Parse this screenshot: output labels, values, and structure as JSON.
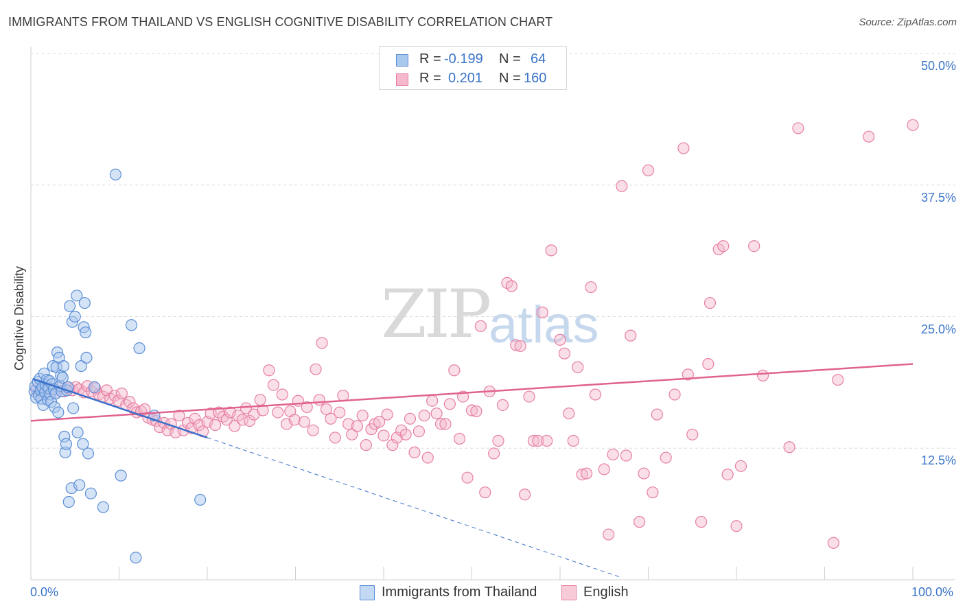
{
  "title": "IMMIGRANTS FROM THAILAND VS ENGLISH COGNITIVE DISABILITY CORRELATION CHART",
  "source": "Source: ZipAtlas.com",
  "watermark": {
    "zip": "ZIP",
    "atlas": "atlas"
  },
  "legend": {
    "rows": [
      {
        "r_label": "R =",
        "r_value": "-0.199",
        "n_label": "N =",
        "n_value": "64"
      },
      {
        "r_label": "R =",
        "r_value": "0.201",
        "n_label": "N =",
        "n_value": "160"
      }
    ]
  },
  "colors": {
    "blue_fill": "#a9c8ee",
    "blue_stroke": "#5b8ed6",
    "blue_line": "#3a6fc9",
    "pink_fill": "#f5b8cc",
    "pink_stroke": "#e67fa2",
    "pink_line": "#e0628f",
    "grid": "#d8d8d8",
    "axis_label": "#3a74c9"
  },
  "chart_data": {
    "type": "scatter",
    "title": "IMMIGRANTS FROM THAILAND VS ENGLISH COGNITIVE DISABILITY CORRELATION CHART",
    "xlabel": "",
    "ylabel": "Cognitive Disability",
    "xlim": [
      0,
      100
    ],
    "ylim": [
      0,
      50
    ],
    "x_tick_labels": [
      "0.0%",
      "100.0%"
    ],
    "y_ticks": [
      12.5,
      25.0,
      37.5,
      50.0
    ],
    "y_tick_labels": [
      "12.5%",
      "25.0%",
      "37.5%",
      "50.0%"
    ],
    "legend_position": "bottom-center",
    "series": [
      {
        "name": "Immigrants from Thailand",
        "color": "blue",
        "r": -0.199,
        "n": 64,
        "trend": {
          "x0": 0.2,
          "y0": 19.1,
          "x1": 20,
          "y1": 13.5,
          "dash_x1": 67,
          "dash_y1": 0.2
        },
        "points": [
          [
            0.4,
            17.9
          ],
          [
            0.5,
            18.4
          ],
          [
            0.6,
            17.3
          ],
          [
            0.8,
            18.8
          ],
          [
            0.9,
            17.5
          ],
          [
            1.0,
            19.1
          ],
          [
            1.1,
            18.0
          ],
          [
            1.2,
            17.2
          ],
          [
            1.3,
            18.3
          ],
          [
            1.4,
            16.6
          ],
          [
            1.5,
            19.6
          ],
          [
            1.6,
            17.8
          ],
          [
            1.7,
            18.5
          ],
          [
            1.8,
            19.0
          ],
          [
            1.9,
            17.1
          ],
          [
            2.0,
            18.2
          ],
          [
            2.1,
            18.9
          ],
          [
            2.2,
            17.6
          ],
          [
            2.3,
            16.9
          ],
          [
            2.4,
            18.6
          ],
          [
            2.5,
            20.3
          ],
          [
            2.6,
            18.1
          ],
          [
            2.7,
            16.4
          ],
          [
            2.8,
            17.7
          ],
          [
            2.9,
            20.2
          ],
          [
            3.0,
            21.6
          ],
          [
            3.1,
            15.9
          ],
          [
            3.2,
            21.1
          ],
          [
            3.3,
            18.4
          ],
          [
            3.4,
            19.4
          ],
          [
            3.5,
            17.9
          ],
          [
            3.6,
            19.2
          ],
          [
            3.7,
            20.3
          ],
          [
            3.8,
            13.6
          ],
          [
            3.9,
            12.1
          ],
          [
            4.0,
            12.9
          ],
          [
            4.1,
            18.0
          ],
          [
            4.2,
            18.3
          ],
          [
            4.3,
            7.4
          ],
          [
            4.4,
            26.0
          ],
          [
            4.6,
            8.7
          ],
          [
            4.7,
            24.5
          ],
          [
            4.8,
            16.3
          ],
          [
            5.0,
            25.0
          ],
          [
            5.2,
            27.0
          ],
          [
            5.3,
            14.0
          ],
          [
            5.5,
            9.0
          ],
          [
            5.7,
            20.3
          ],
          [
            5.9,
            12.9
          ],
          [
            6.0,
            24.0
          ],
          [
            6.1,
            26.3
          ],
          [
            6.2,
            23.5
          ],
          [
            6.3,
            21.1
          ],
          [
            6.5,
            12.0
          ],
          [
            6.8,
            8.2
          ],
          [
            7.2,
            18.3
          ],
          [
            8.2,
            6.9
          ],
          [
            9.6,
            38.5
          ],
          [
            10.2,
            9.9
          ],
          [
            11.4,
            24.2
          ],
          [
            11.9,
            2.1
          ],
          [
            12.3,
            22.0
          ],
          [
            14.0,
            15.6
          ],
          [
            19.2,
            7.6
          ]
        ]
      },
      {
        "name": "English",
        "color": "pink",
        "r": 0.201,
        "n": 160,
        "trend": {
          "x0": 0,
          "y0": 15.1,
          "x1": 100,
          "y1": 20.5
        },
        "points": [
          [
            0.6,
            18.1
          ],
          [
            1.0,
            17.9
          ],
          [
            1.4,
            17.6
          ],
          [
            1.9,
            18.3
          ],
          [
            2.4,
            18.0
          ],
          [
            2.8,
            17.7
          ],
          [
            3.3,
            18.4
          ],
          [
            3.8,
            17.9
          ],
          [
            4.2,
            18.2
          ],
          [
            4.7,
            18.0
          ],
          [
            5.1,
            18.3
          ],
          [
            5.5,
            18.1
          ],
          [
            6.0,
            17.8
          ],
          [
            6.4,
            18.4
          ],
          [
            6.9,
            17.9
          ],
          [
            7.3,
            18.2
          ],
          [
            7.7,
            17.6
          ],
          [
            8.2,
            17.4
          ],
          [
            8.6,
            18.0
          ],
          [
            9.0,
            17.2
          ],
          [
            9.5,
            17.5
          ],
          [
            9.9,
            17.0
          ],
          [
            10.3,
            17.7
          ],
          [
            10.8,
            16.6
          ],
          [
            11.2,
            16.9
          ],
          [
            11.6,
            16.3
          ],
          [
            12.0,
            15.9
          ],
          [
            12.5,
            16.0
          ],
          [
            12.9,
            16.2
          ],
          [
            13.3,
            15.4
          ],
          [
            13.8,
            15.2
          ],
          [
            14.2,
            15.1
          ],
          [
            14.6,
            14.5
          ],
          [
            15.1,
            14.9
          ],
          [
            15.5,
            14.2
          ],
          [
            15.9,
            14.8
          ],
          [
            16.4,
            14.0
          ],
          [
            16.8,
            15.6
          ],
          [
            17.3,
            14.2
          ],
          [
            17.8,
            14.9
          ],
          [
            18.2,
            14.4
          ],
          [
            18.6,
            15.3
          ],
          [
            19.1,
            14.7
          ],
          [
            19.5,
            14.1
          ],
          [
            20.0,
            15.0
          ],
          [
            20.4,
            15.8
          ],
          [
            20.9,
            14.7
          ],
          [
            21.3,
            15.9
          ],
          [
            21.8,
            15.5
          ],
          [
            22.2,
            15.2
          ],
          [
            22.6,
            15.9
          ],
          [
            23.1,
            14.6
          ],
          [
            23.5,
            15.6
          ],
          [
            24.0,
            15.2
          ],
          [
            24.4,
            16.3
          ],
          [
            24.8,
            15.1
          ],
          [
            25.3,
            15.7
          ],
          [
            26.0,
            17.1
          ],
          [
            26.3,
            16.1
          ],
          [
            27.0,
            19.9
          ],
          [
            27.5,
            18.5
          ],
          [
            28.0,
            15.9
          ],
          [
            28.5,
            17.6
          ],
          [
            29.0,
            14.8
          ],
          [
            29.4,
            16.0
          ],
          [
            29.9,
            15.2
          ],
          [
            30.3,
            17.0
          ],
          [
            31.0,
            15.0
          ],
          [
            31.3,
            16.4
          ],
          [
            32.0,
            14.2
          ],
          [
            32.3,
            20.0
          ],
          [
            32.7,
            17.1
          ],
          [
            33.0,
            22.5
          ],
          [
            33.5,
            16.2
          ],
          [
            34.0,
            15.3
          ],
          [
            34.5,
            13.5
          ],
          [
            35.0,
            15.9
          ],
          [
            35.4,
            17.5
          ],
          [
            36.0,
            14.8
          ],
          [
            36.4,
            13.8
          ],
          [
            37.0,
            14.6
          ],
          [
            37.6,
            15.6
          ],
          [
            38.0,
            12.8
          ],
          [
            38.6,
            14.3
          ],
          [
            39.0,
            14.8
          ],
          [
            39.5,
            15.0
          ],
          [
            40.0,
            13.7
          ],
          [
            40.4,
            15.7
          ],
          [
            41.0,
            12.8
          ],
          [
            41.5,
            13.5
          ],
          [
            42.0,
            14.2
          ],
          [
            42.5,
            13.8
          ],
          [
            43.0,
            15.3
          ],
          [
            43.5,
            12.1
          ],
          [
            44.0,
            14.1
          ],
          [
            44.6,
            15.6
          ],
          [
            45.0,
            11.6
          ],
          [
            45.5,
            17.0
          ],
          [
            46.0,
            15.8
          ],
          [
            46.5,
            14.8
          ],
          [
            47.0,
            14.8
          ],
          [
            47.5,
            16.7
          ],
          [
            48.0,
            19.9
          ],
          [
            48.6,
            13.4
          ],
          [
            49.0,
            17.4
          ],
          [
            49.5,
            9.7
          ],
          [
            50.0,
            16.1
          ],
          [
            50.5,
            16.0
          ],
          [
            51.0,
            24.1
          ],
          [
            51.5,
            8.3
          ],
          [
            52.0,
            17.9
          ],
          [
            52.5,
            12.0
          ],
          [
            53.0,
            13.2
          ],
          [
            53.5,
            16.6
          ],
          [
            54.0,
            28.2
          ],
          [
            54.5,
            27.9
          ],
          [
            55.0,
            22.3
          ],
          [
            55.5,
            22.2
          ],
          [
            56.0,
            8.1
          ],
          [
            56.5,
            17.4
          ],
          [
            57.0,
            13.2
          ],
          [
            57.5,
            13.2
          ],
          [
            58.0,
            25.4
          ],
          [
            58.5,
            13.2
          ],
          [
            59.0,
            31.3
          ],
          [
            60.0,
            22.8
          ],
          [
            60.5,
            21.5
          ],
          [
            61.0,
            15.8
          ],
          [
            61.5,
            13.2
          ],
          [
            62.0,
            20.2
          ],
          [
            62.5,
            10.0
          ],
          [
            63.0,
            10.1
          ],
          [
            63.5,
            27.8
          ],
          [
            64.0,
            17.6
          ],
          [
            65.0,
            10.5
          ],
          [
            65.5,
            4.3
          ],
          [
            66.0,
            11.9
          ],
          [
            67.0,
            37.4
          ],
          [
            67.5,
            11.8
          ],
          [
            68.0,
            23.2
          ],
          [
            69.0,
            5.5
          ],
          [
            69.5,
            10.1
          ],
          [
            70.0,
            38.9
          ],
          [
            70.5,
            8.3
          ],
          [
            71.0,
            15.7
          ],
          [
            72.0,
            11.6
          ],
          [
            73.0,
            17.6
          ],
          [
            74.0,
            41.0
          ],
          [
            74.5,
            19.5
          ],
          [
            75.0,
            13.8
          ],
          [
            76.0,
            5.5
          ],
          [
            76.8,
            20.5
          ],
          [
            77.0,
            26.3
          ],
          [
            78.0,
            31.4
          ],
          [
            78.5,
            31.7
          ],
          [
            79.0,
            10.0
          ],
          [
            80.0,
            5.1
          ],
          [
            80.5,
            10.8
          ],
          [
            82.0,
            31.7
          ],
          [
            83.0,
            19.4
          ],
          [
            86.0,
            12.6
          ],
          [
            87.0,
            42.9
          ],
          [
            91.0,
            3.5
          ],
          [
            91.5,
            19.0
          ],
          [
            95.0,
            42.1
          ],
          [
            100.0,
            43.2
          ]
        ]
      }
    ]
  },
  "bottom_legend": {
    "series1": "Immigrants from Thailand",
    "series2": "English"
  },
  "axis_labels": {
    "x_min": "0.0%",
    "x_max": "100.0%",
    "y_title": "Cognitive Disability"
  }
}
